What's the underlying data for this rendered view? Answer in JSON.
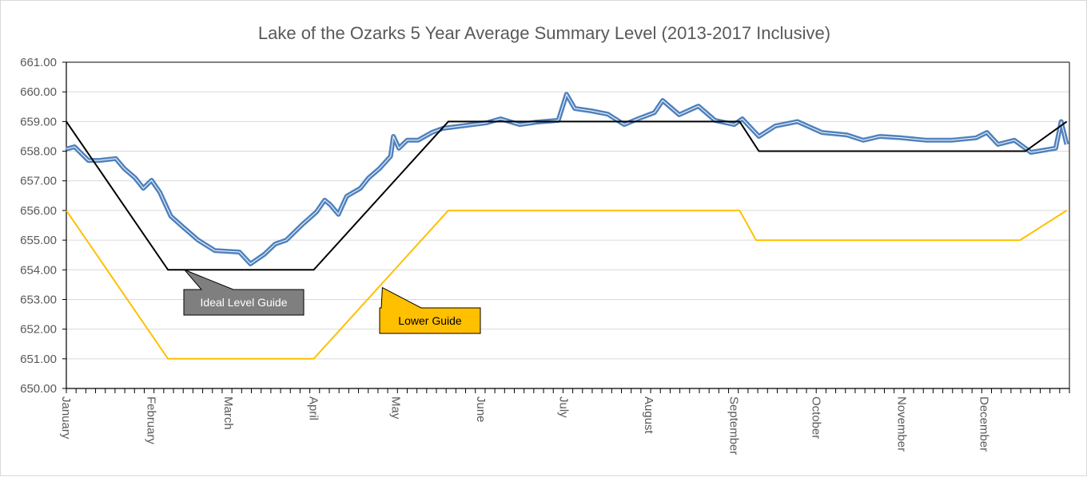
{
  "chart_data": {
    "type": "line",
    "title": "Lake of the Ozarks 5 Year Average Summary Level (2013-2017 Inclusive)",
    "xlabel": "",
    "ylabel": "",
    "ylim": [
      650,
      661
    ],
    "yticks": [
      "650.00",
      "651.00",
      "652.00",
      "653.00",
      "654.00",
      "655.00",
      "656.00",
      "657.00",
      "658.00",
      "659.00",
      "660.00",
      "661.00"
    ],
    "xticks": [
      "January",
      "February",
      "March",
      "April",
      "May",
      "June",
      "July",
      "August",
      "September",
      "October",
      "November",
      "December"
    ],
    "grid": true,
    "legend": "none",
    "series": [
      {
        "color": "#4F81BD",
        "points": [
          [
            "01-01",
            658.07
          ],
          [
            "01-04",
            658.15
          ],
          [
            "01-09",
            657.69
          ],
          [
            "01-13",
            657.69
          ],
          [
            "01-19",
            657.75
          ],
          [
            "01-22",
            657.42
          ],
          [
            "01-26",
            657.1
          ],
          [
            "01-29",
            656.75
          ],
          [
            "02-01",
            657.02
          ],
          [
            "02-04",
            656.62
          ],
          [
            "02-08",
            655.81
          ],
          [
            "02-13",
            655.4
          ],
          [
            "02-18",
            655.0
          ],
          [
            "02-24",
            654.65
          ],
          [
            "03-05",
            654.6
          ],
          [
            "03-09",
            654.2
          ],
          [
            "03-14",
            654.52
          ],
          [
            "03-18",
            654.87
          ],
          [
            "03-22",
            655.0
          ],
          [
            "03-28",
            655.54
          ],
          [
            "04-02",
            655.95
          ],
          [
            "04-05",
            656.35
          ],
          [
            "04-07",
            656.2
          ],
          [
            "04-10",
            655.87
          ],
          [
            "04-13",
            656.48
          ],
          [
            "04-18",
            656.75
          ],
          [
            "04-21",
            657.1
          ],
          [
            "04-25",
            657.42
          ],
          [
            "04-29",
            657.83
          ],
          [
            "04-30",
            658.5
          ],
          [
            "05-02",
            658.1
          ],
          [
            "05-05",
            658.37
          ],
          [
            "05-09",
            658.37
          ],
          [
            "05-14",
            658.63
          ],
          [
            "05-18",
            658.77
          ],
          [
            "05-25",
            658.85
          ],
          [
            "06-03",
            658.96
          ],
          [
            "06-08",
            659.09
          ],
          [
            "06-15",
            658.9
          ],
          [
            "06-21",
            658.98
          ],
          [
            "06-29",
            659.04
          ],
          [
            "07-02",
            659.92
          ],
          [
            "07-05",
            659.44
          ],
          [
            "07-11",
            659.36
          ],
          [
            "07-17",
            659.25
          ],
          [
            "07-23",
            658.9
          ],
          [
            "07-28",
            659.09
          ],
          [
            "08-03",
            659.3
          ],
          [
            "08-06",
            659.71
          ],
          [
            "08-12",
            659.23
          ],
          [
            "08-19",
            659.52
          ],
          [
            "08-25",
            659.04
          ],
          [
            "09-01",
            658.9
          ],
          [
            "09-04",
            659.09
          ],
          [
            "09-10",
            658.5
          ],
          [
            "09-16",
            658.85
          ],
          [
            "09-24",
            659.0
          ],
          [
            "10-03",
            658.63
          ],
          [
            "10-12",
            658.55
          ],
          [
            "10-18",
            658.37
          ],
          [
            "10-24",
            658.5
          ],
          [
            "11-01",
            658.45
          ],
          [
            "11-10",
            658.37
          ],
          [
            "11-19",
            658.37
          ],
          [
            "11-28",
            658.45
          ],
          [
            "12-02",
            658.63
          ],
          [
            "12-06",
            658.23
          ],
          [
            "12-12",
            658.37
          ],
          [
            "12-18",
            657.96
          ],
          [
            "12-27",
            658.1
          ],
          [
            "12-29",
            659.0
          ],
          [
            "12-31",
            658.23
          ]
        ]
      },
      {
        "color": "#000000",
        "points": [
          [
            "01-01",
            659
          ],
          [
            "02-07",
            654
          ],
          [
            "04-01",
            654
          ],
          [
            "05-20",
            659
          ],
          [
            "09-03",
            659
          ],
          [
            "09-10",
            658
          ],
          [
            "12-16",
            658
          ],
          [
            "12-31",
            659
          ]
        ]
      },
      {
        "color": "#FFC000",
        "points": [
          [
            "01-01",
            656
          ],
          [
            "02-07",
            651
          ],
          [
            "04-01",
            651
          ],
          [
            "05-20",
            656
          ],
          [
            "09-03",
            656
          ],
          [
            "09-09",
            655
          ],
          [
            "12-14",
            655
          ],
          [
            "12-31",
            656
          ]
        ]
      }
    ],
    "annotations": [
      {
        "text": "Ideal Level Guide",
        "fill": "#7F7F7F",
        "text_color": "#FFFFFF",
        "points_to": [
          "02-13",
          654
        ]
      },
      {
        "text": "Lower Guide",
        "fill": "#FFC000",
        "text_color": "#000000",
        "points_to": [
          "04-26",
          653.4
        ]
      }
    ]
  }
}
